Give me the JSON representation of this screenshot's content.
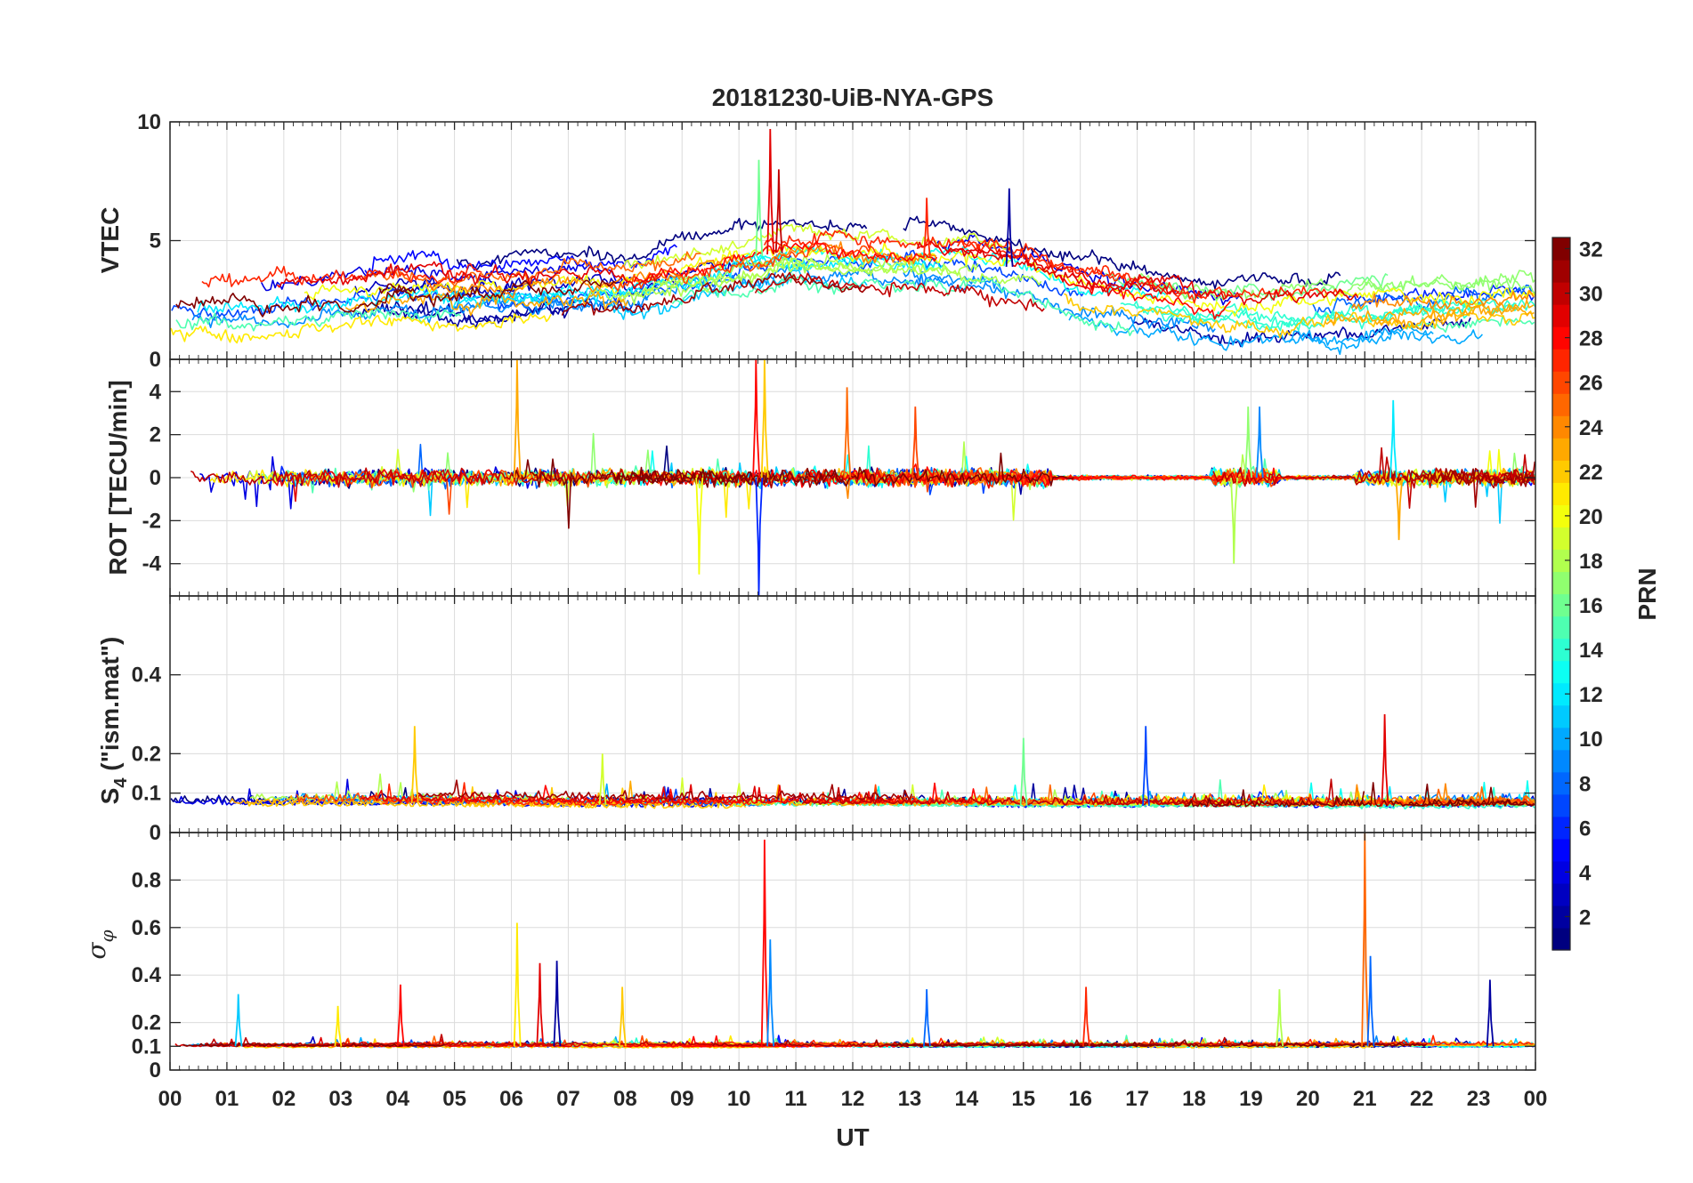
{
  "chart_data": {
    "type": "line",
    "title": "20181230-UiB-NYA-GPS",
    "xlabel": "UT",
    "xlim": [
      0,
      24
    ],
    "x_tick_labels": [
      "00",
      "01",
      "02",
      "03",
      "04",
      "05",
      "06",
      "07",
      "08",
      "09",
      "10",
      "11",
      "12",
      "13",
      "14",
      "15",
      "16",
      "17",
      "18",
      "19",
      "20",
      "21",
      "22",
      "23",
      "00"
    ],
    "series_note": "one line per GPS satellite, coloured by PRN (1-32) using the jet colour map",
    "panels": [
      {
        "id": "vtec",
        "ylabel": "VTEC",
        "ylim": [
          0,
          10
        ],
        "yticks": [
          0,
          5,
          10
        ],
        "ytick_labels": [
          "0",
          "5",
          "10"
        ],
        "profile": [
          [
            0,
            2.6
          ],
          [
            2,
            2.6
          ],
          [
            4,
            3.1
          ],
          [
            5,
            2.9
          ],
          [
            6,
            3.1
          ],
          [
            7,
            3.2
          ],
          [
            8,
            3.1
          ],
          [
            9,
            3.6
          ],
          [
            10,
            4.2
          ],
          [
            11,
            4.6
          ],
          [
            12,
            4.4
          ],
          [
            13,
            4.3
          ],
          [
            14,
            4.2
          ],
          [
            15,
            3.8
          ],
          [
            16,
            3.0
          ],
          [
            17,
            2.6
          ],
          [
            18,
            2.2
          ],
          [
            19,
            2.1
          ],
          [
            20,
            2.2
          ],
          [
            21,
            2.3
          ],
          [
            22,
            2.5
          ],
          [
            23,
            2.6
          ],
          [
            24,
            2.7
          ]
        ],
        "spread": 1.3,
        "noise": 0.35,
        "peaks": [
          [
            10.35,
            8.4
          ],
          [
            10.55,
            9.7
          ],
          [
            10.7,
            8.0
          ],
          [
            13.3,
            6.8
          ],
          [
            14.75,
            7.2
          ]
        ]
      },
      {
        "id": "rot",
        "ylabel": "ROT [TECU/min]",
        "ylim": [
          -5.5,
          5.5
        ],
        "yticks": [
          -4,
          -2,
          0,
          2,
          4
        ],
        "ytick_labels": [
          "-4",
          "-2",
          "0",
          "2",
          "4"
        ],
        "profile": [
          [
            0,
            0
          ],
          [
            24,
            0
          ]
        ],
        "spread": 0.05,
        "noise": 0.32,
        "quiet_intervals": [
          [
            15.5,
            18.3
          ],
          [
            19.5,
            20.8
          ]
        ],
        "peaks": [
          [
            6.1,
            5.5
          ],
          [
            9.3,
            -4.5
          ],
          [
            10.3,
            5.5
          ],
          [
            10.35,
            -5.5
          ],
          [
            10.45,
            5.5
          ],
          [
            11.9,
            4.2
          ],
          [
            13.1,
            3.3
          ],
          [
            18.7,
            -4.0
          ],
          [
            18.95,
            3.3
          ],
          [
            19.15,
            3.3
          ],
          [
            21.5,
            3.6
          ],
          [
            21.6,
            -2.9
          ]
        ]
      },
      {
        "id": "s4",
        "ylabel": "S4 (\"ism.mat\")",
        "ylabel_main": "S",
        "ylabel_sub": "4",
        "ylabel_rest": " (\"ism.mat\")",
        "ylim": [
          0,
          0.6
        ],
        "yticks": [
          0,
          0.1,
          0.2,
          0.4
        ],
        "ytick_labels": [
          "0",
          "0.1",
          "0.2",
          "0.4"
        ],
        "profile": [
          [
            0,
            0.075
          ],
          [
            4,
            0.075
          ],
          [
            8,
            0.07
          ],
          [
            12,
            0.07
          ],
          [
            16,
            0.068
          ],
          [
            20,
            0.068
          ],
          [
            24,
            0.07
          ]
        ],
        "spread": 0.01,
        "noise": 0.015,
        "peaks": [
          [
            4.3,
            0.27
          ],
          [
            7.6,
            0.2
          ],
          [
            15.0,
            0.24
          ],
          [
            17.15,
            0.27
          ],
          [
            21.35,
            0.3
          ]
        ]
      },
      {
        "id": "sigma_phi",
        "ylabel": "σφ",
        "ylabel_main": "σ",
        "ylabel_sub": "φ",
        "ylim": [
          0,
          1.0
        ],
        "yticks": [
          0,
          0.1,
          0.2,
          0.4,
          0.6,
          0.8
        ],
        "ytick_labels": [
          "0",
          "0.1",
          "0.2",
          "0.4",
          "0.6",
          "0.8"
        ],
        "profile": [
          [
            0,
            0.1
          ],
          [
            24,
            0.1
          ]
        ],
        "spread": 0.005,
        "noise": 0.01,
        "peaks": [
          [
            1.2,
            0.32
          ],
          [
            2.95,
            0.27
          ],
          [
            4.05,
            0.36
          ],
          [
            6.1,
            0.62
          ],
          [
            6.5,
            0.45
          ],
          [
            6.8,
            0.46
          ],
          [
            7.95,
            0.35
          ],
          [
            10.45,
            0.97
          ],
          [
            10.55,
            0.55
          ],
          [
            13.3,
            0.34
          ],
          [
            16.1,
            0.35
          ],
          [
            19.5,
            0.34
          ],
          [
            21.0,
            1.0
          ],
          [
            21.1,
            0.48
          ],
          [
            23.2,
            0.38
          ]
        ]
      }
    ]
  },
  "colorbar": {
    "label": "PRN",
    "min": 1,
    "max": 32,
    "ticks": [
      2,
      4,
      6,
      8,
      10,
      12,
      14,
      16,
      18,
      20,
      22,
      24,
      26,
      28,
      30,
      32
    ],
    "tick_labels": [
      "2",
      "4",
      "6",
      "8",
      "10",
      "12",
      "14",
      "16",
      "18",
      "20",
      "22",
      "24",
      "26",
      "28",
      "30",
      "32"
    ],
    "colormap": "jet"
  },
  "colors": {
    "axis": "#262626",
    "grid": "#dcdcdc",
    "background": "#ffffff"
  }
}
